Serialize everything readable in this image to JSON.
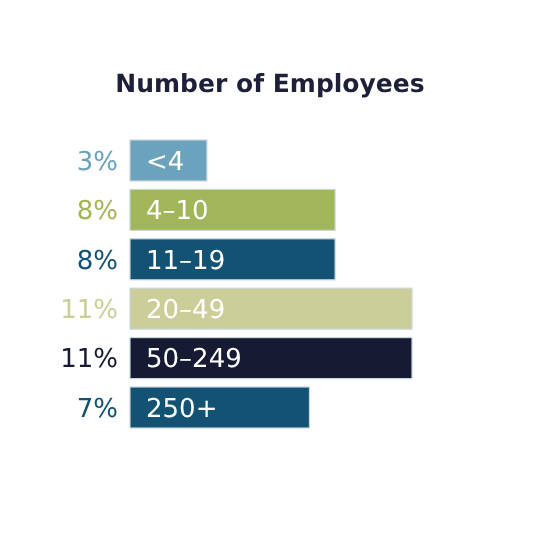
{
  "chart_data": {
    "type": "bar",
    "orientation": "horizontal",
    "title": "Number of Employees",
    "categories": [
      "<4",
      "4–10",
      "11–19",
      "20–49",
      "50–249",
      "250+"
    ],
    "values": [
      3,
      8,
      8,
      11,
      11,
      7
    ],
    "colors": [
      "#6aa3bb",
      "#a1b658",
      "#135272",
      "#ccce9a",
      "#171a33",
      "#135272"
    ],
    "value_labels": [
      "3%",
      "8%",
      "8%",
      "11%",
      "11%",
      "7%"
    ]
  }
}
